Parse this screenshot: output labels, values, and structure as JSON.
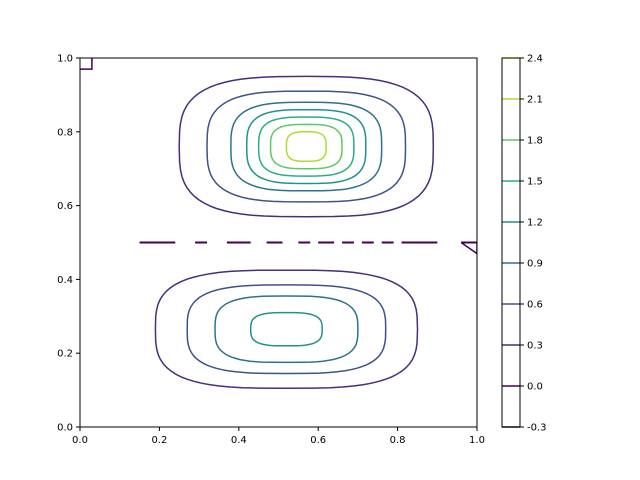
{
  "chart_data": {
    "type": "contour",
    "title": "",
    "xlabel": "",
    "ylabel": "",
    "xlim": [
      0.0,
      1.0
    ],
    "ylim": [
      0.0,
      1.0
    ],
    "xticks": [
      "0.0",
      "0.2",
      "0.4",
      "0.6",
      "0.8",
      "1.0"
    ],
    "yticks": [
      "0.0",
      "0.2",
      "0.4",
      "0.6",
      "0.8",
      "1.0"
    ],
    "grid": false,
    "colormap": "viridis",
    "colorbar": {
      "levels": [
        "-0.3",
        "0.0",
        "0.3",
        "0.6",
        "0.9",
        "1.2",
        "1.5",
        "1.8",
        "2.1",
        "2.4"
      ],
      "colors": [
        "#440154",
        "#472d7b",
        "#3b528b",
        "#2c728e",
        "#21918c",
        "#28ae80",
        "#5ec962",
        "#addc30",
        "#fde725"
      ]
    },
    "upper_lobe": {
      "center": [
        0.57,
        0.76
      ],
      "contours": [
        {
          "level": 0.3,
          "color": "#472d7b",
          "rx": 0.32,
          "ry": 0.19
        },
        {
          "level": 0.6,
          "color": "#3b528b",
          "rx": 0.25,
          "ry": 0.15
        },
        {
          "level": 0.9,
          "color": "#2c728e",
          "rx": 0.19,
          "ry": 0.12
        },
        {
          "level": 1.2,
          "color": "#21918c",
          "rx": 0.15,
          "ry": 0.1
        },
        {
          "level": 1.5,
          "color": "#28ae80",
          "rx": 0.12,
          "ry": 0.08
        },
        {
          "level": 1.8,
          "color": "#5ec962",
          "rx": 0.09,
          "ry": 0.06
        },
        {
          "level": 2.1,
          "color": "#addc30",
          "rx": 0.05,
          "ry": 0.04
        }
      ]
    },
    "lower_lobe": {
      "center": [
        0.52,
        0.265
      ],
      "contours": [
        {
          "level": 0.3,
          "color": "#472d7b",
          "rx": 0.33,
          "ry": 0.16
        },
        {
          "level": 0.6,
          "color": "#3b528b",
          "rx": 0.25,
          "ry": 0.12
        },
        {
          "level": 0.9,
          "color": "#2c728e",
          "rx": 0.18,
          "ry": 0.09
        },
        {
          "level": 1.2,
          "color": "#21918c",
          "rx": 0.09,
          "ry": 0.045
        }
      ]
    },
    "zero_contour": {
      "level": 0.0,
      "color": "#440154",
      "y": 0.5,
      "segments": [
        [
          0.15,
          0.24
        ],
        [
          0.29,
          0.32
        ],
        [
          0.37,
          0.43
        ],
        [
          0.47,
          0.51
        ],
        [
          0.55,
          0.58
        ],
        [
          0.6,
          0.64
        ],
        [
          0.66,
          0.69
        ],
        [
          0.71,
          0.74
        ],
        [
          0.76,
          0.79
        ],
        [
          0.81,
          0.9
        ],
        [
          0.96,
          1.0
        ]
      ]
    }
  }
}
